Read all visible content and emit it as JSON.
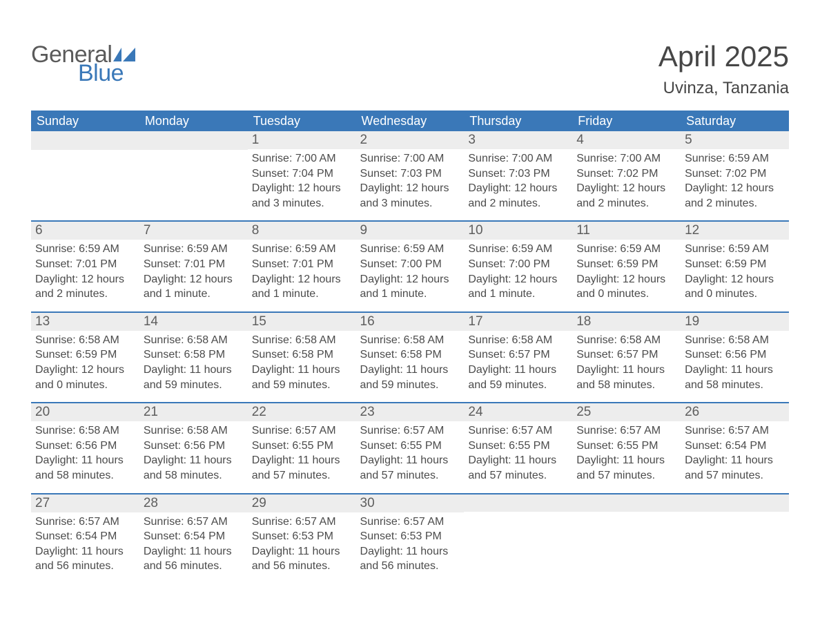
{
  "logo": {
    "general": "General",
    "blue": "Blue",
    "tri_color": "#3a78b8"
  },
  "title": "April 2025",
  "subtitle": "Uvinza, Tanzania",
  "colors": {
    "header_bg": "#3a78b8",
    "header_text": "#ffffff",
    "daynum_bg": "#ededed",
    "row_border": "#3a78b8",
    "text": "#464646"
  },
  "weekdays": [
    "Sunday",
    "Monday",
    "Tuesday",
    "Wednesday",
    "Thursday",
    "Friday",
    "Saturday"
  ],
  "weeks": [
    [
      null,
      null,
      {
        "d": "1",
        "sr": "7:00 AM",
        "ss": "7:04 PM",
        "dl": "12 hours and 3 minutes."
      },
      {
        "d": "2",
        "sr": "7:00 AM",
        "ss": "7:03 PM",
        "dl": "12 hours and 3 minutes."
      },
      {
        "d": "3",
        "sr": "7:00 AM",
        "ss": "7:03 PM",
        "dl": "12 hours and 2 minutes."
      },
      {
        "d": "4",
        "sr": "7:00 AM",
        "ss": "7:02 PM",
        "dl": "12 hours and 2 minutes."
      },
      {
        "d": "5",
        "sr": "6:59 AM",
        "ss": "7:02 PM",
        "dl": "12 hours and 2 minutes."
      }
    ],
    [
      {
        "d": "6",
        "sr": "6:59 AM",
        "ss": "7:01 PM",
        "dl": "12 hours and 2 minutes."
      },
      {
        "d": "7",
        "sr": "6:59 AM",
        "ss": "7:01 PM",
        "dl": "12 hours and 1 minute."
      },
      {
        "d": "8",
        "sr": "6:59 AM",
        "ss": "7:01 PM",
        "dl": "12 hours and 1 minute."
      },
      {
        "d": "9",
        "sr": "6:59 AM",
        "ss": "7:00 PM",
        "dl": "12 hours and 1 minute."
      },
      {
        "d": "10",
        "sr": "6:59 AM",
        "ss": "7:00 PM",
        "dl": "12 hours and 1 minute."
      },
      {
        "d": "11",
        "sr": "6:59 AM",
        "ss": "6:59 PM",
        "dl": "12 hours and 0 minutes."
      },
      {
        "d": "12",
        "sr": "6:59 AM",
        "ss": "6:59 PM",
        "dl": "12 hours and 0 minutes."
      }
    ],
    [
      {
        "d": "13",
        "sr": "6:58 AM",
        "ss": "6:59 PM",
        "dl": "12 hours and 0 minutes."
      },
      {
        "d": "14",
        "sr": "6:58 AM",
        "ss": "6:58 PM",
        "dl": "11 hours and 59 minutes."
      },
      {
        "d": "15",
        "sr": "6:58 AM",
        "ss": "6:58 PM",
        "dl": "11 hours and 59 minutes."
      },
      {
        "d": "16",
        "sr": "6:58 AM",
        "ss": "6:58 PM",
        "dl": "11 hours and 59 minutes."
      },
      {
        "d": "17",
        "sr": "6:58 AM",
        "ss": "6:57 PM",
        "dl": "11 hours and 59 minutes."
      },
      {
        "d": "18",
        "sr": "6:58 AM",
        "ss": "6:57 PM",
        "dl": "11 hours and 58 minutes."
      },
      {
        "d": "19",
        "sr": "6:58 AM",
        "ss": "6:56 PM",
        "dl": "11 hours and 58 minutes."
      }
    ],
    [
      {
        "d": "20",
        "sr": "6:58 AM",
        "ss": "6:56 PM",
        "dl": "11 hours and 58 minutes."
      },
      {
        "d": "21",
        "sr": "6:58 AM",
        "ss": "6:56 PM",
        "dl": "11 hours and 58 minutes."
      },
      {
        "d": "22",
        "sr": "6:57 AM",
        "ss": "6:55 PM",
        "dl": "11 hours and 57 minutes."
      },
      {
        "d": "23",
        "sr": "6:57 AM",
        "ss": "6:55 PM",
        "dl": "11 hours and 57 minutes."
      },
      {
        "d": "24",
        "sr": "6:57 AM",
        "ss": "6:55 PM",
        "dl": "11 hours and 57 minutes."
      },
      {
        "d": "25",
        "sr": "6:57 AM",
        "ss": "6:55 PM",
        "dl": "11 hours and 57 minutes."
      },
      {
        "d": "26",
        "sr": "6:57 AM",
        "ss": "6:54 PM",
        "dl": "11 hours and 57 minutes."
      }
    ],
    [
      {
        "d": "27",
        "sr": "6:57 AM",
        "ss": "6:54 PM",
        "dl": "11 hours and 56 minutes."
      },
      {
        "d": "28",
        "sr": "6:57 AM",
        "ss": "6:54 PM",
        "dl": "11 hours and 56 minutes."
      },
      {
        "d": "29",
        "sr": "6:57 AM",
        "ss": "6:53 PM",
        "dl": "11 hours and 56 minutes."
      },
      {
        "d": "30",
        "sr": "6:57 AM",
        "ss": "6:53 PM",
        "dl": "11 hours and 56 minutes."
      },
      null,
      null,
      null
    ]
  ],
  "labels": {
    "sunrise": "Sunrise: ",
    "sunset": "Sunset: ",
    "daylight": "Daylight: "
  }
}
